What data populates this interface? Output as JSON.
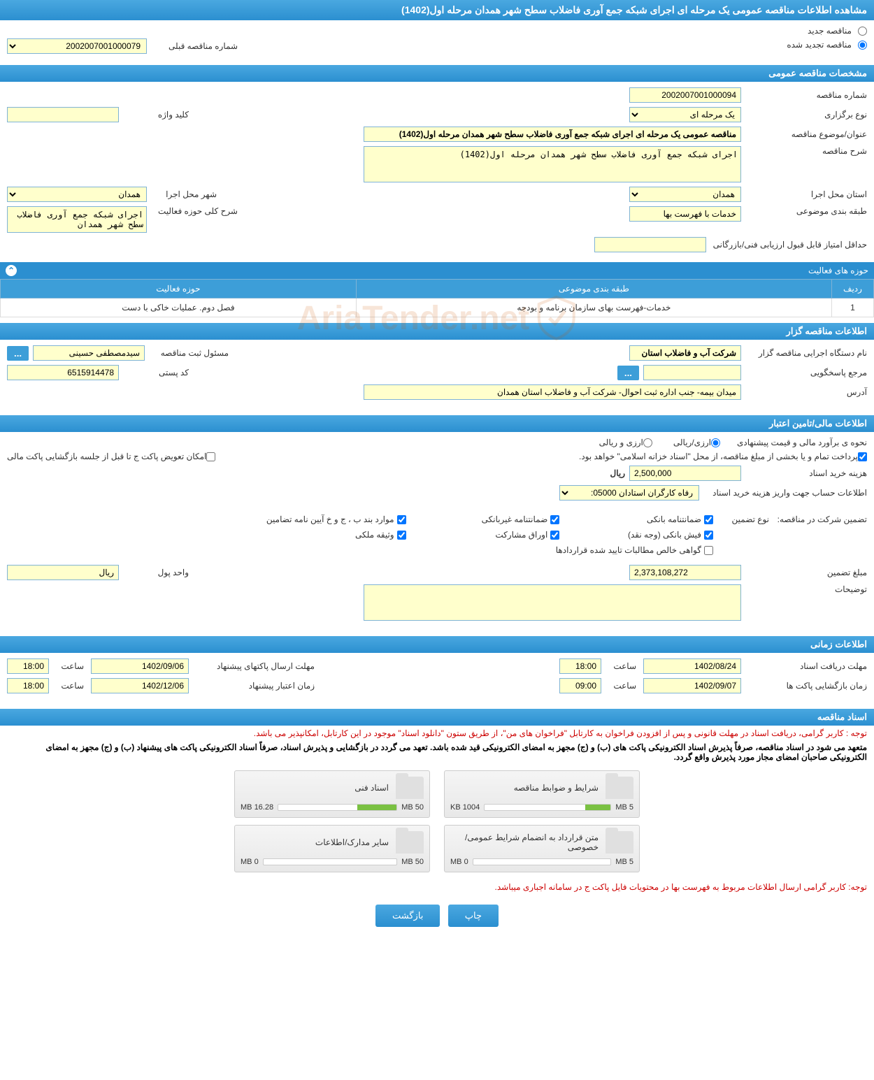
{
  "page_title": "مشاهده اطلاعات مناقصه عمومی یک مرحله ای اجرای شبکه جمع آوری فاضلاب سطح شهر همدان مرحله اول(1402)",
  "watermark_text": "AriaTender.net",
  "tender_type": {
    "new_label": "مناقصه جدید",
    "renewed_label": "مناقصه تجدید شده",
    "prev_number_label": "شماره مناقصه قبلی",
    "prev_number_value": "2002007001000079"
  },
  "sections": {
    "general_spec": "مشخصات مناقصه عمومی",
    "activity_areas": "حوزه های فعالیت",
    "tender_info": "اطلاعات مناقصه گزار",
    "financial_info": "اطلاعات مالی/تامین اعتبار",
    "time_info": "اطلاعات زمانی",
    "tender_docs": "اسناد مناقصه"
  },
  "general": {
    "number_label": "شماره مناقصه",
    "number_value": "2002007001000094",
    "hold_type_label": "نوع برگزاری",
    "hold_type_value": "یک مرحله ای",
    "keyword_label": "کلید واژه",
    "keyword_value": "",
    "subject_label": "عنوان/موضوع مناقصه",
    "subject_value": "مناقصه عمومی یک مرحله ای اجرای شبکه جمع آوری فاضلاب سطح شهر همدان مرحله اول(1402)",
    "desc_label": "شرح مناقصه",
    "desc_value": "اجرای شبکه جمع آوری فاضلاب سطح شهر همدان مرحله اول(1402)",
    "province_label": "استان محل اجرا",
    "province_value": "همدان",
    "city_label": "شهر محل اجرا",
    "city_value": "همدان",
    "category_label": "طبقه بندی موضوعی",
    "category_value": "خدمات با فهرست بها",
    "activity_scope_label": "شرح کلی حوزه فعالیت",
    "activity_scope_value": "اجرای شبکه جمع آوری فاضلاب سطح شهر همدان",
    "min_score_label": "حداقل امتیاز قابل قبول ارزیابی فنی/بازرگانی",
    "min_score_value": ""
  },
  "activity_table": {
    "col_row": "ردیف",
    "col_category": "طبقه بندی موضوعی",
    "col_area": "حوزه فعالیت",
    "rows": [
      {
        "n": "1",
        "category": "خدمات-فهرست بهای سازمان برنامه و بودجه",
        "area": "فصل دوم. عملیات خاکی با دست"
      }
    ]
  },
  "tenderer": {
    "org_label": "نام دستگاه اجرایی مناقصه گزار",
    "org_value": "شرکت آب و فاضلاب استان",
    "registrar_label": "مسئول ثبت مناقصه",
    "registrar_value": "سیدمصطفی حسینی",
    "contact_label": "مرجع پاسخگویی",
    "contact_value": "",
    "postal_label": "کد پستی",
    "postal_value": "6515914478",
    "address_label": "آدرس",
    "address_value": "میدان بیمه- جنب اداره ثبت احوال- شرکت آب و فاضلاب استان همدان",
    "browse_label": "..."
  },
  "financial": {
    "estimate_label": "نحوه ی برآورد مالی و قیمت پیشنهادی",
    "arzi_riyali": "ارزی/ریالی",
    "arzi_va_riyali": "ارزی و ریالی",
    "payment_note": "پرداخت تمام و یا بخشی از مبلغ مناقصه، از محل \"اسناد خزانه اسلامی\" خواهد بود.",
    "replace_note": "امکان تعویض پاکت ج تا قبل از جلسه بازگشایی پاکت مالی",
    "doc_cost_label": "هزینه خرید اسناد",
    "doc_cost_value": "2,500,000",
    "riyal": "ریال",
    "account_label": "اطلاعات حساب جهت واریز هزینه خرید اسناد",
    "account_value": "رفاه کارگران استادان 05000:",
    "guarantee_label": "تضمین شرکت در مناقصه:",
    "guarantee_type_label": "نوع تضمین",
    "guarantees": {
      "bank_guarantee": "ضمانتنامه بانکی",
      "nonbank_guarantee": "ضمانتنامه غیربانکی",
      "items_bpj": "موارد بند ب ، ج و خ آیین نامه تضامین",
      "bank_receipt": "فیش بانکی (وجه نقد)",
      "participation_bonds": "اوراق مشارکت",
      "property_pledge": "وثیقه ملکی",
      "net_claims": "گواهی خالص مطالبات تایید شده قراردادها"
    },
    "guarantee_amount_label": "مبلغ تضمین",
    "guarantee_amount_value": "2,373,108,272",
    "money_unit_label": "واحد پول",
    "money_unit_value": "ریال",
    "notes_label": "توضیحات",
    "notes_value": ""
  },
  "timing": {
    "receive_deadline_label": "مهلت دریافت اسناد",
    "receive_date": "1402/08/24",
    "receive_time": "18:00",
    "time_label": "ساعت",
    "submit_deadline_label": "مهلت ارسال پاکتهای پیشنهاد",
    "submit_date": "1402/09/06",
    "submit_time": "18:00",
    "open_label": "زمان بازگشایی پاکت ها",
    "open_date": "1402/09/07",
    "open_time": "09:00",
    "validity_label": "زمان اعتبار پیشنهاد",
    "validity_date": "1402/12/06",
    "validity_time": "18:00"
  },
  "docs": {
    "note1": "توجه : کاربر گرامی، دریافت اسناد در مهلت قانونی و پس از افزودن فراخوان به کارتابل \"فراخوان های من\"، از طریق ستون \"دانلود اسناد\" موجود در این کارتابل، امکانپذیر می باشد.",
    "note2": "متعهد می شود در اسناد مناقصه، صرفاً پذیرش اسناد الکترونیکی پاکت های (ب) و (ج) مجهز به امضای الکترونیکی قید شده باشد. تعهد می گردد در بازگشایی و پذیرش اسناد، صرفاً اسناد الکترونیکی پاکت های پیشنهاد (ب) و (ج) مجهز به امضای الکترونیکی صاحبان امضای مجاز مورد پذیرش واقع گردد.",
    "items": [
      {
        "title": "شرایط و ضوابط مناقصه",
        "used": "1004 KB",
        "total": "5 MB",
        "pct": 20
      },
      {
        "title": "اسناد فنی",
        "used": "16.28 MB",
        "total": "50 MB",
        "pct": 33
      },
      {
        "title": "متن قرارداد به انضمام شرایط عمومی/خصوصی",
        "used": "0 MB",
        "total": "5 MB",
        "pct": 0
      },
      {
        "title": "سایر مدارک/اطلاعات",
        "used": "0 MB",
        "total": "50 MB",
        "pct": 0
      }
    ],
    "bottom_note": "توجه: کاربر گرامی ارسال اطلاعات مربوط به فهرست بها در محتویات فایل پاکت ج در سامانه اجباری میباشد."
  },
  "buttons": {
    "print": "چاپ",
    "back": "بازگشت"
  }
}
